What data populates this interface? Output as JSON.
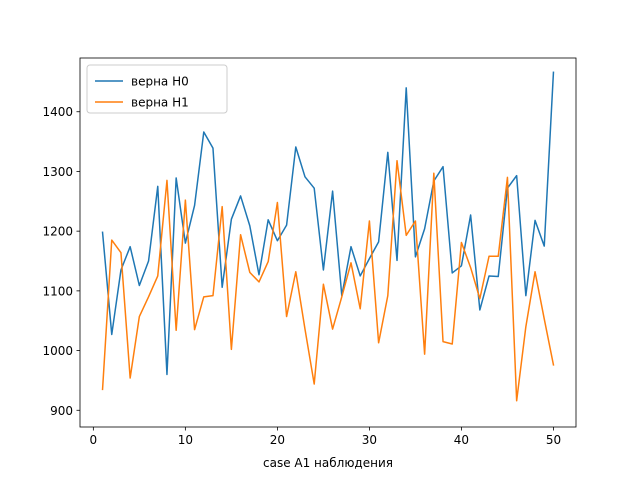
{
  "chart_data": {
    "type": "line",
    "title": "",
    "xlabel": "case A1 наблюдения",
    "ylabel": "",
    "xlim": [
      -1.45,
      52.45
    ],
    "ylim": [
      872,
      1490
    ],
    "x_ticks": [
      0,
      10,
      20,
      30,
      40,
      50
    ],
    "y_ticks": [
      900,
      1000,
      1100,
      1200,
      1300,
      1400
    ],
    "grid": false,
    "legend_position": "top-left",
    "x": [
      1,
      2,
      3,
      4,
      5,
      6,
      7,
      8,
      9,
      10,
      11,
      12,
      13,
      14,
      15,
      16,
      17,
      18,
      19,
      20,
      21,
      22,
      23,
      24,
      25,
      26,
      27,
      28,
      29,
      30,
      31,
      32,
      33,
      34,
      35,
      36,
      37,
      38,
      39,
      40,
      41,
      42,
      43,
      44,
      45,
      46,
      47,
      48,
      49,
      50
    ],
    "series": [
      {
        "name": "верна H0",
        "color": "#1f77b4",
        "values": [
          1198,
          1027,
          1135,
          1174,
          1109,
          1150,
          1275,
          960,
          1289,
          1180,
          1243,
          1366,
          1339,
          1106,
          1220,
          1259,
          1209,
          1127,
          1219,
          1184,
          1210,
          1341,
          1291,
          1272,
          1135,
          1267,
          1092,
          1174,
          1125,
          1154,
          1182,
          1332,
          1151,
          1440,
          1157,
          1204,
          1284,
          1308,
          1130,
          1142,
          1227,
          1068,
          1125,
          1124,
          1272,
          1293,
          1092,
          1218,
          1175,
          1466
        ]
      },
      {
        "name": "верна H1",
        "color": "#ff7f0e",
        "values": [
          935,
          1185,
          1164,
          954,
          1057,
          1090,
          1125,
          1285,
          1034,
          1252,
          1035,
          1090,
          1092,
          1241,
          1002,
          1194,
          1131,
          1115,
          1149,
          1248,
          1057,
          1132,
          1036,
          944,
          1111,
          1036,
          1090,
          1147,
          1070,
          1217,
          1013,
          1092,
          1318,
          1193,
          1217,
          994,
          1297,
          1015,
          1011,
          1181,
          1139,
          1087,
          1158,
          1158,
          1290,
          916,
          1040,
          1132,
          1053,
          976
        ]
      }
    ]
  }
}
